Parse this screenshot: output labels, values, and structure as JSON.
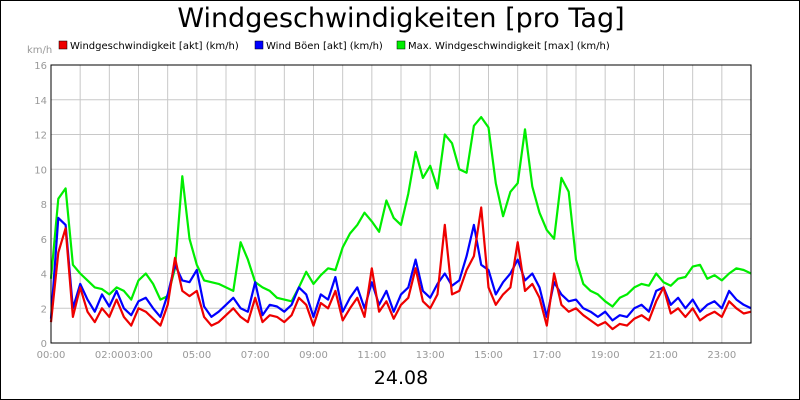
{
  "chart_data": {
    "type": "line",
    "title": "Windgeschwindigkeiten [pro Tag]",
    "date_label": "24.08",
    "ylabel": "km/h",
    "ylim": [
      0,
      16
    ],
    "yticks": [
      0,
      2,
      4,
      6,
      8,
      10,
      12,
      14,
      16
    ],
    "xlim_hours": [
      0,
      24
    ],
    "xticks": [
      {
        "hour": 0,
        "label": "00:00"
      },
      {
        "hour": 2,
        "label": "02:00"
      },
      {
        "hour": 3,
        "label": "03:00"
      },
      {
        "hour": 5,
        "label": "05:00"
      },
      {
        "hour": 7,
        "label": "07:00"
      },
      {
        "hour": 9,
        "label": "09:00"
      },
      {
        "hour": 11,
        "label": "11:00"
      },
      {
        "hour": 13,
        "label": "13:00"
      },
      {
        "hour": 15,
        "label": "15:00"
      },
      {
        "hour": 17,
        "label": "17:00"
      },
      {
        "hour": 19,
        "label": "19:00"
      },
      {
        "hour": 21,
        "label": "21:00"
      },
      {
        "hour": 23,
        "label": "23:00"
      }
    ],
    "grid": true,
    "legend_position": "top",
    "series": [
      {
        "name": "Max. Windgeschwindigkeit [max] (km/h)",
        "color": "#00ee00",
        "hours": [
          0,
          0.25,
          0.5,
          0.75,
          1,
          1.25,
          1.5,
          1.75,
          2,
          2.25,
          2.5,
          2.75,
          3,
          3.25,
          3.5,
          3.75,
          4,
          4.25,
          4.5,
          4.75,
          5,
          5.25,
          5.5,
          5.75,
          6,
          6.25,
          6.5,
          6.75,
          7,
          7.25,
          7.5,
          7.75,
          8,
          8.25,
          8.5,
          8.75,
          9,
          9.25,
          9.5,
          9.75,
          10,
          10.25,
          10.5,
          10.75,
          11,
          11.25,
          11.5,
          11.75,
          12,
          12.25,
          12.5,
          12.75,
          13,
          13.25,
          13.5,
          13.75,
          14,
          14.25,
          14.5,
          14.75,
          15,
          15.25,
          15.5,
          15.75,
          16,
          16.25,
          16.5,
          16.75,
          17,
          17.25,
          17.5,
          17.75,
          18,
          18.25,
          18.5,
          18.75,
          19,
          19.25,
          19.5,
          19.75,
          20,
          20.25,
          20.5,
          20.75,
          21,
          21.25,
          21.5,
          21.75,
          22,
          22.25,
          22.5,
          22.75,
          23,
          23.25,
          23.5,
          23.75,
          24
        ],
        "values": [
          3.7,
          8.3,
          8.9,
          4.5,
          4.0,
          3.6,
          3.2,
          3.1,
          2.8,
          3.2,
          3.0,
          2.5,
          3.6,
          4.0,
          3.4,
          2.5,
          2.7,
          4.3,
          9.6,
          6.0,
          4.5,
          3.6,
          3.5,
          3.4,
          3.2,
          3.0,
          5.8,
          4.8,
          3.5,
          3.2,
          3.0,
          2.6,
          2.5,
          2.4,
          3.2,
          4.1,
          3.4,
          3.9,
          4.3,
          4.2,
          5.5,
          6.3,
          6.8,
          7.5,
          7.0,
          6.4,
          8.2,
          7.2,
          6.8,
          8.6,
          11.0,
          9.5,
          10.2,
          8.9,
          12.0,
          11.5,
          10.0,
          9.8,
          12.5,
          13.0,
          12.4,
          9.2,
          7.3,
          8.7,
          9.2,
          12.3,
          9.0,
          7.5,
          6.5,
          6.0,
          9.5,
          8.7,
          4.8,
          3.4,
          3.0,
          2.8,
          2.4,
          2.1,
          2.6,
          2.8,
          3.2,
          3.4,
          3.3,
          4.0,
          3.5,
          3.3,
          3.7,
          3.8,
          4.4,
          4.5,
          3.7,
          3.9,
          3.6,
          4.0,
          4.3,
          4.2,
          4.0
        ]
      },
      {
        "name": "Wind Böen [akt] (km/h)",
        "color": "#0000ff",
        "hours": [
          0,
          0.25,
          0.5,
          0.75,
          1,
          1.25,
          1.5,
          1.75,
          2,
          2.25,
          2.5,
          2.75,
          3,
          3.25,
          3.5,
          3.75,
          4,
          4.25,
          4.5,
          4.75,
          5,
          5.25,
          5.5,
          5.75,
          6,
          6.25,
          6.5,
          6.75,
          7,
          7.25,
          7.5,
          7.75,
          8,
          8.25,
          8.5,
          8.75,
          9,
          9.25,
          9.5,
          9.75,
          10,
          10.25,
          10.5,
          10.75,
          11,
          11.25,
          11.5,
          11.75,
          12,
          12.25,
          12.5,
          12.75,
          13,
          13.25,
          13.5,
          13.75,
          14,
          14.25,
          14.5,
          14.75,
          15,
          15.25,
          15.5,
          15.75,
          16,
          16.25,
          16.5,
          16.75,
          17,
          17.25,
          17.5,
          17.75,
          18,
          18.25,
          18.5,
          18.75,
          19,
          19.25,
          19.5,
          19.75,
          20,
          20.25,
          20.5,
          20.75,
          21,
          21.25,
          21.5,
          21.75,
          22,
          22.25,
          22.5,
          22.75,
          23,
          23.25,
          23.5,
          23.75,
          24
        ],
        "values": [
          1.4,
          7.2,
          6.8,
          2.0,
          3.4,
          2.5,
          1.8,
          2.8,
          2.1,
          3.0,
          2.0,
          1.6,
          2.4,
          2.6,
          2.0,
          1.5,
          2.8,
          4.5,
          3.6,
          3.5,
          4.2,
          2.1,
          1.5,
          1.8,
          2.2,
          2.6,
          2.0,
          1.8,
          3.5,
          1.6,
          2.2,
          2.1,
          1.8,
          2.2,
          3.2,
          2.8,
          1.5,
          2.8,
          2.5,
          3.8,
          1.8,
          2.6,
          3.2,
          2.0,
          3.5,
          2.2,
          3.0,
          1.8,
          2.8,
          3.2,
          4.8,
          3.0,
          2.6,
          3.4,
          4.0,
          3.3,
          3.6,
          5.0,
          6.8,
          4.5,
          4.2,
          2.8,
          3.5,
          4.0,
          4.8,
          3.6,
          4.0,
          3.2,
          1.5,
          3.5,
          2.8,
          2.4,
          2.5,
          2.0,
          1.8,
          1.5,
          1.8,
          1.3,
          1.6,
          1.5,
          2.0,
          2.2,
          1.8,
          3.0,
          3.2,
          2.2,
          2.6,
          2.0,
          2.5,
          1.8,
          2.2,
          2.4,
          2.0,
          3.0,
          2.5,
          2.2,
          2.0
        ]
      },
      {
        "name": "Windgeschwindigkeit [akt] (km/h)",
        "color": "#ee0000",
        "hours": [
          0,
          0.25,
          0.5,
          0.75,
          1,
          1.25,
          1.5,
          1.75,
          2,
          2.25,
          2.5,
          2.75,
          3,
          3.25,
          3.5,
          3.75,
          4,
          4.25,
          4.5,
          4.75,
          5,
          5.25,
          5.5,
          5.75,
          6,
          6.25,
          6.5,
          6.75,
          7,
          7.25,
          7.5,
          7.75,
          8,
          8.25,
          8.5,
          8.75,
          9,
          9.25,
          9.5,
          9.75,
          10,
          10.25,
          10.5,
          10.75,
          11,
          11.25,
          11.5,
          11.75,
          12,
          12.25,
          12.5,
          12.75,
          13,
          13.25,
          13.5,
          13.75,
          14,
          14.25,
          14.5,
          14.75,
          15,
          15.25,
          15.5,
          15.75,
          16,
          16.25,
          16.5,
          16.75,
          17,
          17.25,
          17.5,
          17.75,
          18,
          18.25,
          18.5,
          18.75,
          19,
          19.25,
          19.5,
          19.75,
          20,
          20.25,
          20.5,
          20.75,
          21,
          21.25,
          21.5,
          21.75,
          22,
          22.25,
          22.5,
          22.75,
          23,
          23.25,
          23.5,
          23.75,
          24
        ],
        "values": [
          1.2,
          5.2,
          6.6,
          1.5,
          3.2,
          1.8,
          1.2,
          2.0,
          1.5,
          2.5,
          1.5,
          1.0,
          2.0,
          1.8,
          1.4,
          1.0,
          2.2,
          4.9,
          3.0,
          2.7,
          3.0,
          1.5,
          1.0,
          1.2,
          1.6,
          2.0,
          1.5,
          1.2,
          2.6,
          1.2,
          1.6,
          1.5,
          1.2,
          1.6,
          2.6,
          2.2,
          1.0,
          2.3,
          2.0,
          3.0,
          1.3,
          2.0,
          2.6,
          1.5,
          4.3,
          1.8,
          2.4,
          1.4,
          2.2,
          2.6,
          4.3,
          2.4,
          2.0,
          2.8,
          6.8,
          2.8,
          3.0,
          4.2,
          5.0,
          7.8,
          3.2,
          2.2,
          2.8,
          3.2,
          5.8,
          3.0,
          3.4,
          2.6,
          1.0,
          4.0,
          2.2,
          1.8,
          2.0,
          1.6,
          1.3,
          1.0,
          1.2,
          0.8,
          1.1,
          1.0,
          1.4,
          1.6,
          1.3,
          2.4,
          3.2,
          1.7,
          2.0,
          1.5,
          2.0,
          1.3,
          1.6,
          1.8,
          1.5,
          2.4,
          2.0,
          1.7,
          1.8
        ]
      }
    ]
  },
  "legend": [
    {
      "label": "Windgeschwindigkeit [akt] (km/h)",
      "color": "#ee0000"
    },
    {
      "label": "Wind Böen [akt] (km/h)",
      "color": "#0000ff"
    },
    {
      "label": "Max. Windgeschwindigkeit [max] (km/h)",
      "color": "#00ee00"
    }
  ]
}
